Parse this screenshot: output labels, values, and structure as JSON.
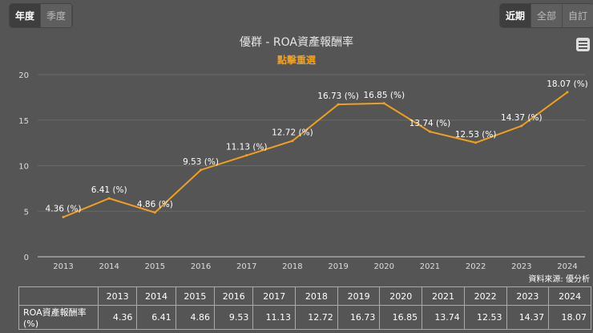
{
  "period_toggle": [
    {
      "label": "年度",
      "active": true
    },
    {
      "label": "季度",
      "active": false
    }
  ],
  "range_toggle": [
    {
      "label": "近期",
      "active": true
    },
    {
      "label": "全部",
      "active": false
    },
    {
      "label": "自訂",
      "active": false
    }
  ],
  "menu_icon": "hamburger-menu-icon",
  "source": "資料來源: 優分析",
  "chart_data": {
    "type": "line",
    "title": "優群 - ROA資產報酬率",
    "subtitle": "點擊重選",
    "categories": [
      "2013",
      "2014",
      "2015",
      "2016",
      "2017",
      "2018",
      "2019",
      "2020",
      "2021",
      "2022",
      "2023",
      "2024"
    ],
    "series": [
      {
        "name": "ROA資產報酬率(%)",
        "values": [
          4.36,
          6.41,
          4.86,
          9.53,
          11.13,
          12.72,
          16.73,
          16.85,
          13.74,
          12.53,
          14.37,
          18.07
        ],
        "color": "#f0a020"
      }
    ],
    "data_label_suffix": " (%)",
    "ylim": [
      0,
      20
    ],
    "yticks": [
      "0",
      "5",
      "10",
      "15",
      "20"
    ],
    "grid": true
  },
  "table": {
    "row_label": "ROA資產報酬率(%)",
    "values": [
      "4.36",
      "6.41",
      "4.86",
      "9.53",
      "11.13",
      "12.72",
      "16.73",
      "16.85",
      "13.74",
      "12.53",
      "14.37",
      "18.07"
    ]
  }
}
